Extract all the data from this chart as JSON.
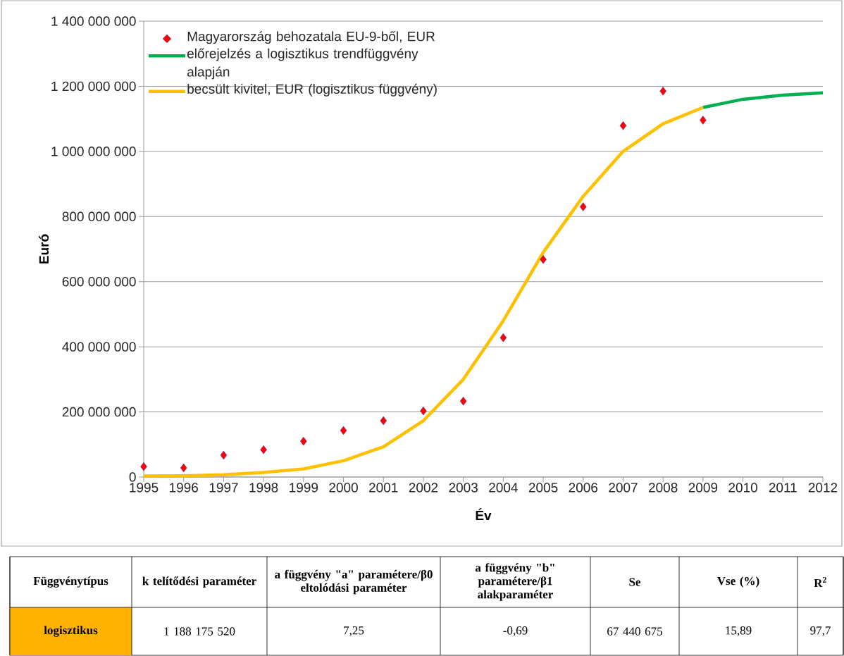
{
  "chart_data": {
    "type": "line",
    "xlabel": "Év",
    "ylabel": "Euró",
    "xlim": [
      1995,
      2012
    ],
    "xticks": [
      1995,
      1996,
      1997,
      1998,
      1999,
      2000,
      2001,
      2002,
      2003,
      2004,
      2005,
      2006,
      2007,
      2008,
      2009,
      2010,
      2011,
      2012
    ],
    "ylim": [
      0,
      1400000000
    ],
    "yticks": [
      {
        "value": 0,
        "label": "0"
      },
      {
        "value": 200000000,
        "label": "200 000 000"
      },
      {
        "value": 400000000,
        "label": "400 000 000"
      },
      {
        "value": 600000000,
        "label": "600 000 000"
      },
      {
        "value": 800000000,
        "label": "800 000 000"
      },
      {
        "value": 1000000000,
        "label": "1 000 000 000"
      },
      {
        "value": 1200000000,
        "label": "1 200 000 000"
      },
      {
        "value": 1400000000,
        "label": "1 400 000 000"
      }
    ],
    "grid": "y",
    "legend": "top left",
    "series": [
      {
        "name": "Magyarország behozatala EU-9-ből, EUR",
        "type": "scatter",
        "marker": "diamond",
        "color": "#ff0000",
        "x": [
          1995,
          1996,
          1997,
          1998,
          1999,
          2000,
          2001,
          2002,
          2003,
          2004,
          2005,
          2006,
          2007,
          2008,
          2009
        ],
        "values": [
          32000000,
          28000000,
          67000000,
          84000000,
          110000000,
          143000000,
          173000000,
          203000000,
          233000000,
          428000000,
          668000000,
          830000000,
          1079000000,
          1185000000,
          1096000000
        ]
      },
      {
        "name": "előrejelzés a logisztikus trendfüggvény alapján",
        "marker": "none",
        "line_style": "solid",
        "color": "#00b050",
        "x": [
          2009,
          2010,
          2011,
          2012
        ],
        "values": [
          1135000000,
          1160000000,
          1173000000,
          1180000000
        ]
      },
      {
        "name": "becsült kivitel, EUR (logisztikus függvény)",
        "marker": "none",
        "line_style": "solid",
        "color": "#ffc000",
        "x": [
          1995,
          1996,
          1997,
          1998,
          1999,
          2000,
          2001,
          2002,
          2003,
          2004,
          2005,
          2006,
          2007,
          2008,
          2009
        ],
        "values": [
          3000000,
          4000000,
          7000000,
          14000000,
          25000000,
          50000000,
          93000000,
          173000000,
          300000000,
          480000000,
          690000000,
          862000000,
          1000000000,
          1085000000,
          1135000000
        ]
      }
    ],
    "annotations": [
      "Függvénytípus",
      "k telítődési paraméter",
      "a függvény \"a\" paramétere/β0 eltolódási paraméter",
      "a függvény \"b\" paramétere/β1 alakparaméter",
      "Se",
      "Vse (%)",
      "R$^{2}$",
      "logisztikus",
      "1 188 175 520",
      "7,25",
      "-0,69",
      "67 440 675",
      "15,89",
      "97,7"
    ]
  }
}
